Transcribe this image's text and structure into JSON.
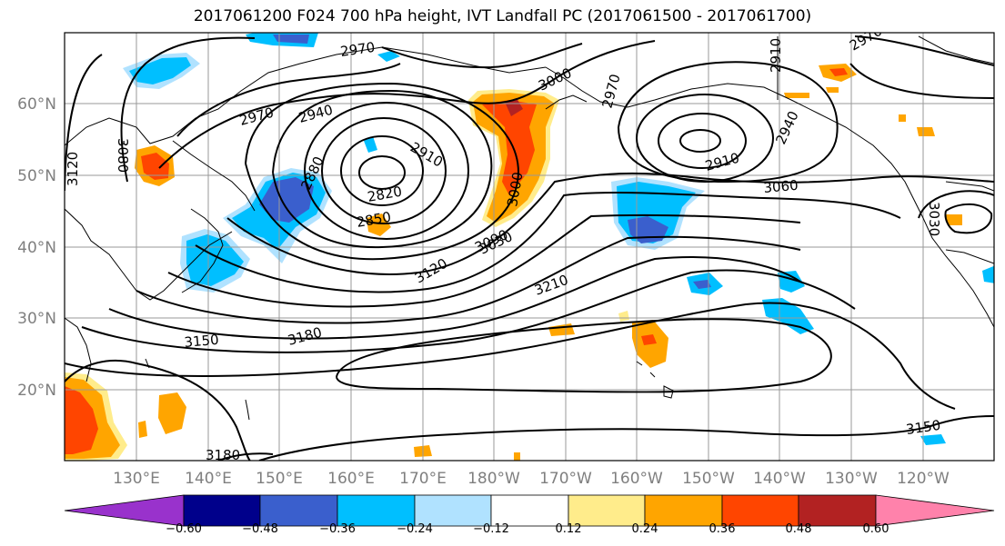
{
  "title": "2017061200 F024 700 hPa height, IVT Landfall PC (2017061500 - 2017061700)",
  "map": {
    "lat_labels": [
      "60°N",
      "50°N",
      "40°N",
      "30°N",
      "20°N"
    ],
    "lon_labels": [
      "130°E",
      "140°E",
      "150°E",
      "160°E",
      "170°E",
      "180°W",
      "170°W",
      "160°W",
      "150°W",
      "140°W",
      "130°W",
      "120°W"
    ],
    "contour_labels": [
      "2970",
      "3000",
      "2970",
      "2880",
      "2910",
      "2970",
      "2940",
      "2910",
      "2820",
      "2850",
      "3000",
      "3030",
      "2910",
      "3060",
      "3080",
      "3120",
      "3030",
      "3090",
      "3120",
      "3210",
      "3150",
      "3180",
      "3180",
      "3150",
      "2940",
      "2970"
    ]
  },
  "colorbar": {
    "ticks": [
      "−0.60",
      "−0.48",
      "−0.36",
      "−0.24",
      "−0.12",
      "0.12",
      "0.24",
      "0.36",
      "0.48",
      "0.60"
    ],
    "colors": [
      "#9932cc",
      "#00008b",
      "#3a5fcd",
      "#00bfff",
      "#b0e2ff",
      "#ffffff",
      "#ffec8b",
      "#ffa500",
      "#ff4500",
      "#b22222",
      "#ff82ab"
    ]
  }
}
